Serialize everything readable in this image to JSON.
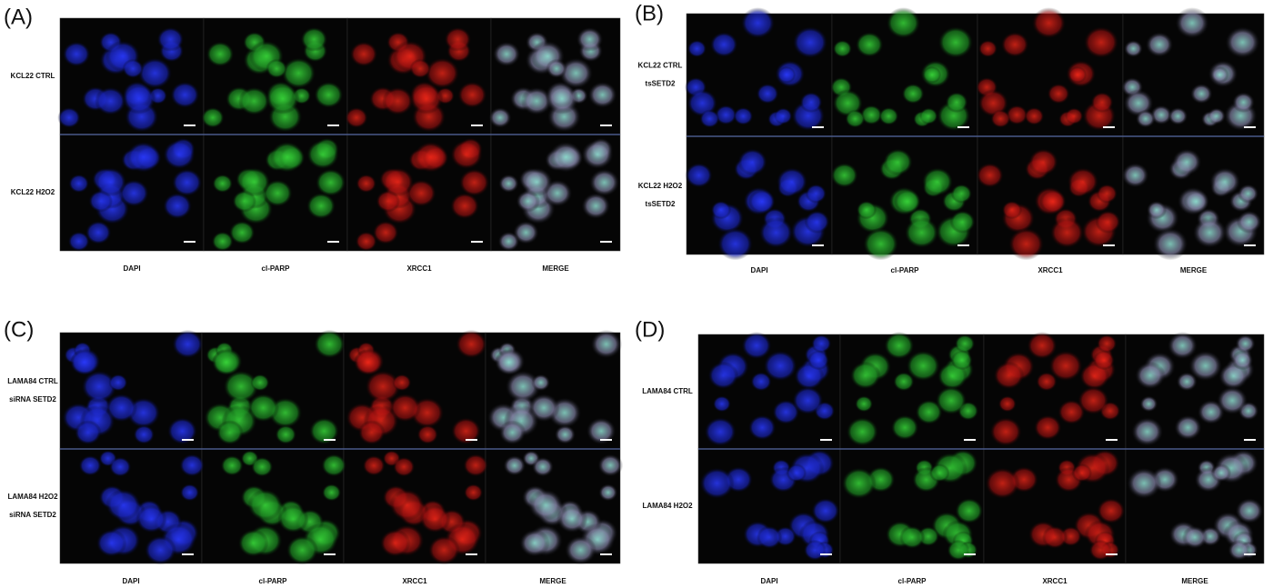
{
  "panels": [
    {
      "label": "(A)",
      "rows": [
        [
          "KCL22 CTRL"
        ],
        [
          "KCL22 H2O2"
        ]
      ],
      "columns": [
        "DAPI",
        "cl-PARP",
        "XRCC1",
        "MERGE"
      ]
    },
    {
      "label": "(B)",
      "rows": [
        [
          "KCL22 CTRL",
          "tsSETD2"
        ],
        [
          "KCL22 H2O2",
          "tsSETD2"
        ]
      ],
      "columns": [
        "DAPI",
        "cl-PARP",
        "XRCC1",
        "MERGE"
      ]
    },
    {
      "label": "(C)",
      "rows": [
        [
          "LAMA84 CTRL",
          "siRNA SETD2"
        ],
        [
          "LAMA84 H2O2",
          "siRNA SETD2"
        ]
      ],
      "columns": [
        "DAPI",
        "cl-PARP",
        "XRCC1",
        "MERGE"
      ]
    },
    {
      "label": "(D)",
      "rows": [
        [
          "LAMA84 CTRL"
        ],
        [
          "LAMA84 H2O2"
        ]
      ],
      "columns": [
        "DAPI",
        "cl-PARP",
        "XRCC1",
        "MERGE"
      ]
    }
  ]
}
